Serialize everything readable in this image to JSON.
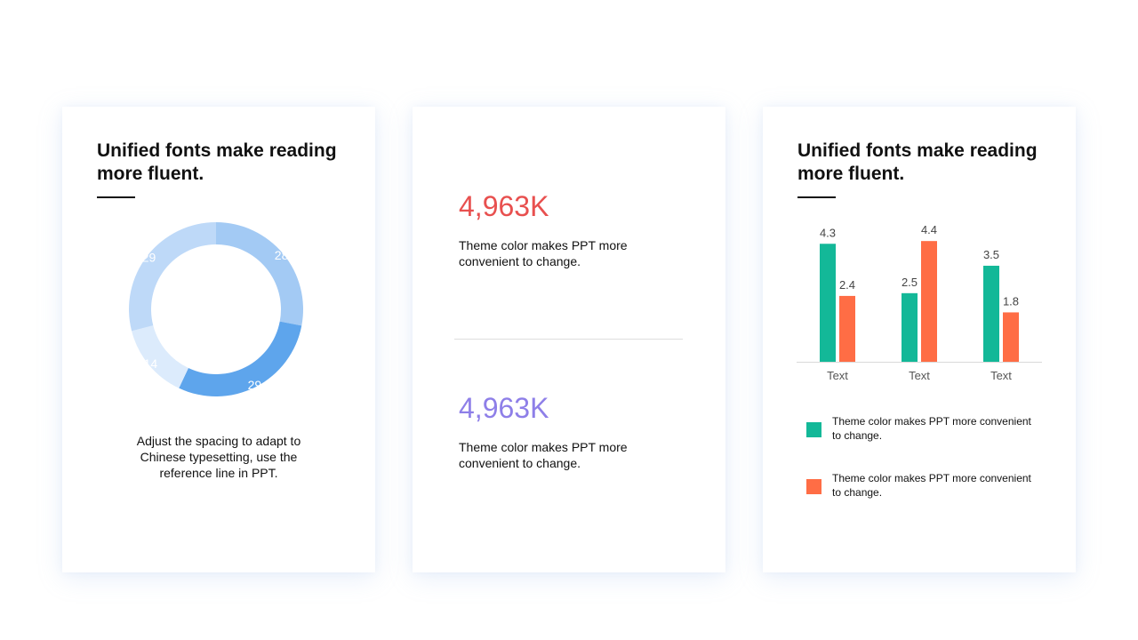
{
  "left_card": {
    "title": "Unified fonts make reading more fluent.",
    "caption": "Adjust the spacing to adapt to Chinese typesetting, use the reference line in PPT."
  },
  "middle_card": {
    "stat_1": {
      "value": "4,963K",
      "color": "#E8504F",
      "description": "Theme  color makes PPT more convenient  to change."
    },
    "stat_2": {
      "value": "4,963K",
      "color": "#8E7FE8",
      "description": "Theme  color makes PPT more convenient  to change."
    }
  },
  "right_card": {
    "title": "Unified fonts make reading more fluent."
  },
  "chart_data": [
    {
      "type": "pie",
      "donut": true,
      "title": "",
      "values": [
        28,
        29,
        14,
        29
      ],
      "labels": [
        "28",
        "29",
        "14",
        "29"
      ],
      "colors": [
        "#A3CAF4",
        "#5EA5EC",
        "#DCEBFC",
        "#BED9F8"
      ],
      "start": "top, clockwise"
    },
    {
      "type": "bar",
      "title": "",
      "categories": [
        "Text",
        "Text",
        "Text"
      ],
      "series": [
        {
          "values": [
            4.3,
            2.5,
            3.5
          ],
          "color": "#13B898"
        },
        {
          "values": [
            2.4,
            4.4,
            1.8
          ],
          "color": "#FF6D45"
        }
      ],
      "ylim": [
        0,
        4.6
      ],
      "grid": false,
      "legend": [
        {
          "label": "Theme  color makes PPT more convenient  to change.",
          "color": "#13B898"
        },
        {
          "label": "Theme  color makes PPT more convenient  to change.",
          "color": "#FF6D45"
        }
      ]
    }
  ]
}
